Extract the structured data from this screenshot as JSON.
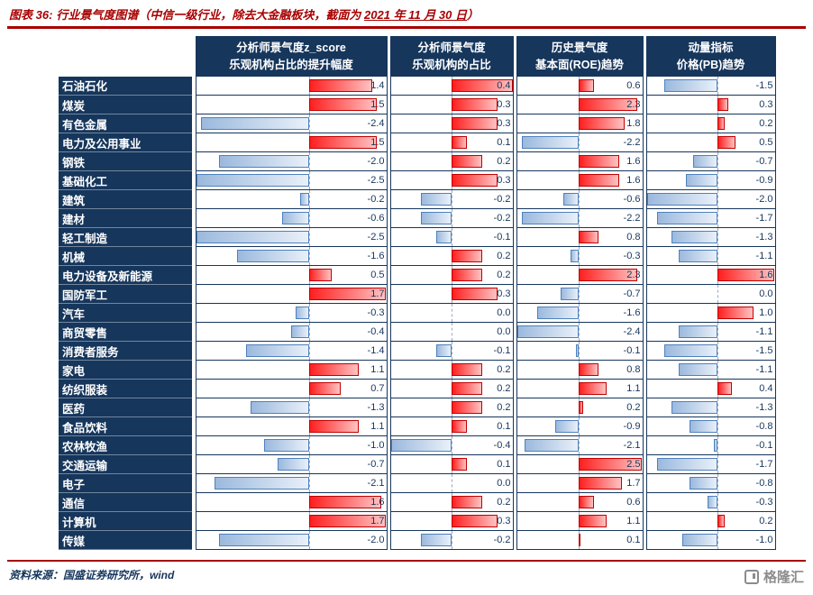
{
  "title": {
    "prefix": "图表 36:",
    "main": "行业景气度图谱（中信一级行业，除去大金融板块，截面为 ",
    "date": "2021 年 11 月 30 日",
    "suffix": "）"
  },
  "table": {
    "column_headers": [
      {
        "line1": "分析师景气度z_score",
        "line2": "乐观机构占比的提升幅度"
      },
      {
        "line1": "分析师景气度",
        "line2": "乐观机构的占比"
      },
      {
        "line1": "历史景气度",
        "line2": "基本面(ROE)趋势"
      },
      {
        "line1": "动量指标",
        "line2": "价格(PB)趋势"
      }
    ]
  },
  "chart_data": {
    "type": "table",
    "subtype": "data-bar-heatmap",
    "title": "行业景气度图谱（中信一级行业，除去大金融板块，截面为 2021 年 11 月 30 日）",
    "categories": [
      "石油石化",
      "煤炭",
      "有色金属",
      "电力及公用事业",
      "钢铁",
      "基础化工",
      "建筑",
      "建材",
      "轻工制造",
      "机械",
      "电力设备及新能源",
      "国防军工",
      "汽车",
      "商贸零售",
      "消费者服务",
      "家电",
      "纺织服装",
      "医药",
      "食品饮料",
      "农林牧渔",
      "交通运输",
      "电子",
      "通信",
      "计算机",
      "传媒"
    ],
    "series": [
      {
        "name": "分析师景气度z_score 乐观机构占比的提升幅度",
        "values": [
          1.4,
          1.5,
          -2.4,
          1.5,
          -2.0,
          -2.5,
          -0.2,
          -0.6,
          -2.5,
          -1.6,
          0.5,
          1.7,
          -0.3,
          -0.4,
          -1.4,
          1.1,
          0.7,
          -1.3,
          1.1,
          -1.0,
          -0.7,
          -2.1,
          1.6,
          1.7,
          -2.0
        ]
      },
      {
        "name": "分析师景气度 乐观机构的占比",
        "values": [
          0.4,
          0.3,
          0.3,
          0.1,
          0.2,
          0.3,
          -0.2,
          -0.2,
          -0.1,
          0.2,
          0.2,
          0.3,
          0.0,
          0.0,
          -0.1,
          0.2,
          0.2,
          0.2,
          0.1,
          -0.4,
          0.1,
          0.0,
          0.2,
          0.3,
          -0.2
        ]
      },
      {
        "name": "历史景气度 基本面(ROE)趋势",
        "values": [
          0.6,
          2.3,
          1.8,
          -2.2,
          1.6,
          1.6,
          -0.6,
          -2.2,
          0.8,
          -0.3,
          2.3,
          -0.7,
          -1.6,
          -2.4,
          -0.1,
          0.8,
          1.1,
          0.2,
          -0.9,
          -2.1,
          2.5,
          1.7,
          0.6,
          1.1,
          0.1
        ]
      },
      {
        "name": "动量指标 价格(PB)趋势",
        "values": [
          -1.5,
          0.3,
          0.2,
          0.5,
          -0.7,
          -0.9,
          -2.0,
          -1.7,
          -1.3,
          -1.1,
          1.6,
          0.0,
          1.0,
          -1.1,
          -1.5,
          -1.1,
          0.4,
          -1.3,
          -0.8,
          -0.1,
          -1.7,
          -0.8,
          -0.3,
          0.2,
          -1.0
        ]
      }
    ],
    "legend": "red bars = positive values, blue bars = negative values, bar axis per Excel data-bar rules"
  },
  "colors": {
    "accent_red": "#A80000",
    "header_bg": "#16365C",
    "value_text": "#16365C",
    "positive_bar_fill": "#FF1F1F",
    "positive_bar_border": "#C00000",
    "negative_bar_fill": "#9BB9DD",
    "negative_bar_border": "#4F81BD"
  },
  "footer": {
    "source": "资料来源：国盛证券研究所，wind",
    "logo_text": "格隆汇"
  }
}
